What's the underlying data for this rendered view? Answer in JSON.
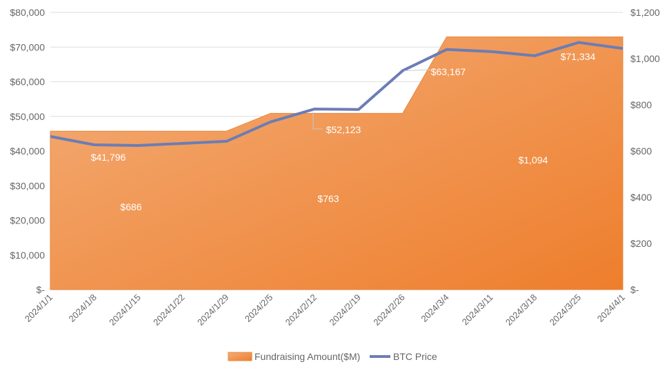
{
  "chart_data": {
    "type": "area+line",
    "x": [
      "2024/1/1",
      "2024/1/8",
      "2024/1/15",
      "2024/1/22",
      "2024/1/29",
      "2024/2/5",
      "2024/2/12",
      "2024/2/19",
      "2024/2/26",
      "2024/3/4",
      "2024/3/11",
      "2024/3/18",
      "2024/3/25",
      "2024/4/1"
    ],
    "left_axis": {
      "ticks": [
        "$-",
        "$10,000",
        "$20,000",
        "$30,000",
        "$40,000",
        "$50,000",
        "$60,000",
        "$70,000",
        "$80,000"
      ],
      "range": [
        0,
        80000
      ]
    },
    "right_axis": {
      "ticks": [
        "$-",
        "$200",
        "$400",
        "$600",
        "$800",
        "$1,000",
        "$1,200"
      ],
      "range": [
        0,
        1200
      ]
    },
    "grid": true,
    "legend_position": "bottom",
    "series": [
      {
        "name": "Fundraising Amount($M)",
        "type": "area",
        "axis": "right",
        "color": "#ef8a3f",
        "values": [
          686,
          686,
          686,
          686,
          686,
          763,
          763,
          763,
          763,
          1094,
          1094,
          1094,
          1094,
          1094
        ],
        "labels": [
          {
            "index": 2,
            "text": "$686"
          },
          {
            "index": 6,
            "text": "$763"
          },
          {
            "index": 11,
            "text": "$1,094"
          }
        ]
      },
      {
        "name": "BTC Price",
        "type": "line",
        "axis": "left",
        "color": "#6b7db5",
        "values": [
          44200,
          41796,
          41600,
          42200,
          42800,
          48400,
          52123,
          52000,
          63167,
          69300,
          68700,
          67500,
          71334,
          69600
        ],
        "labels": [
          {
            "index": 1,
            "text": "$41,796"
          },
          {
            "index": 6,
            "text": "$52,123"
          },
          {
            "index": 8,
            "text": "$63,167"
          },
          {
            "index": 12,
            "text": "$71,334"
          }
        ]
      }
    ]
  }
}
